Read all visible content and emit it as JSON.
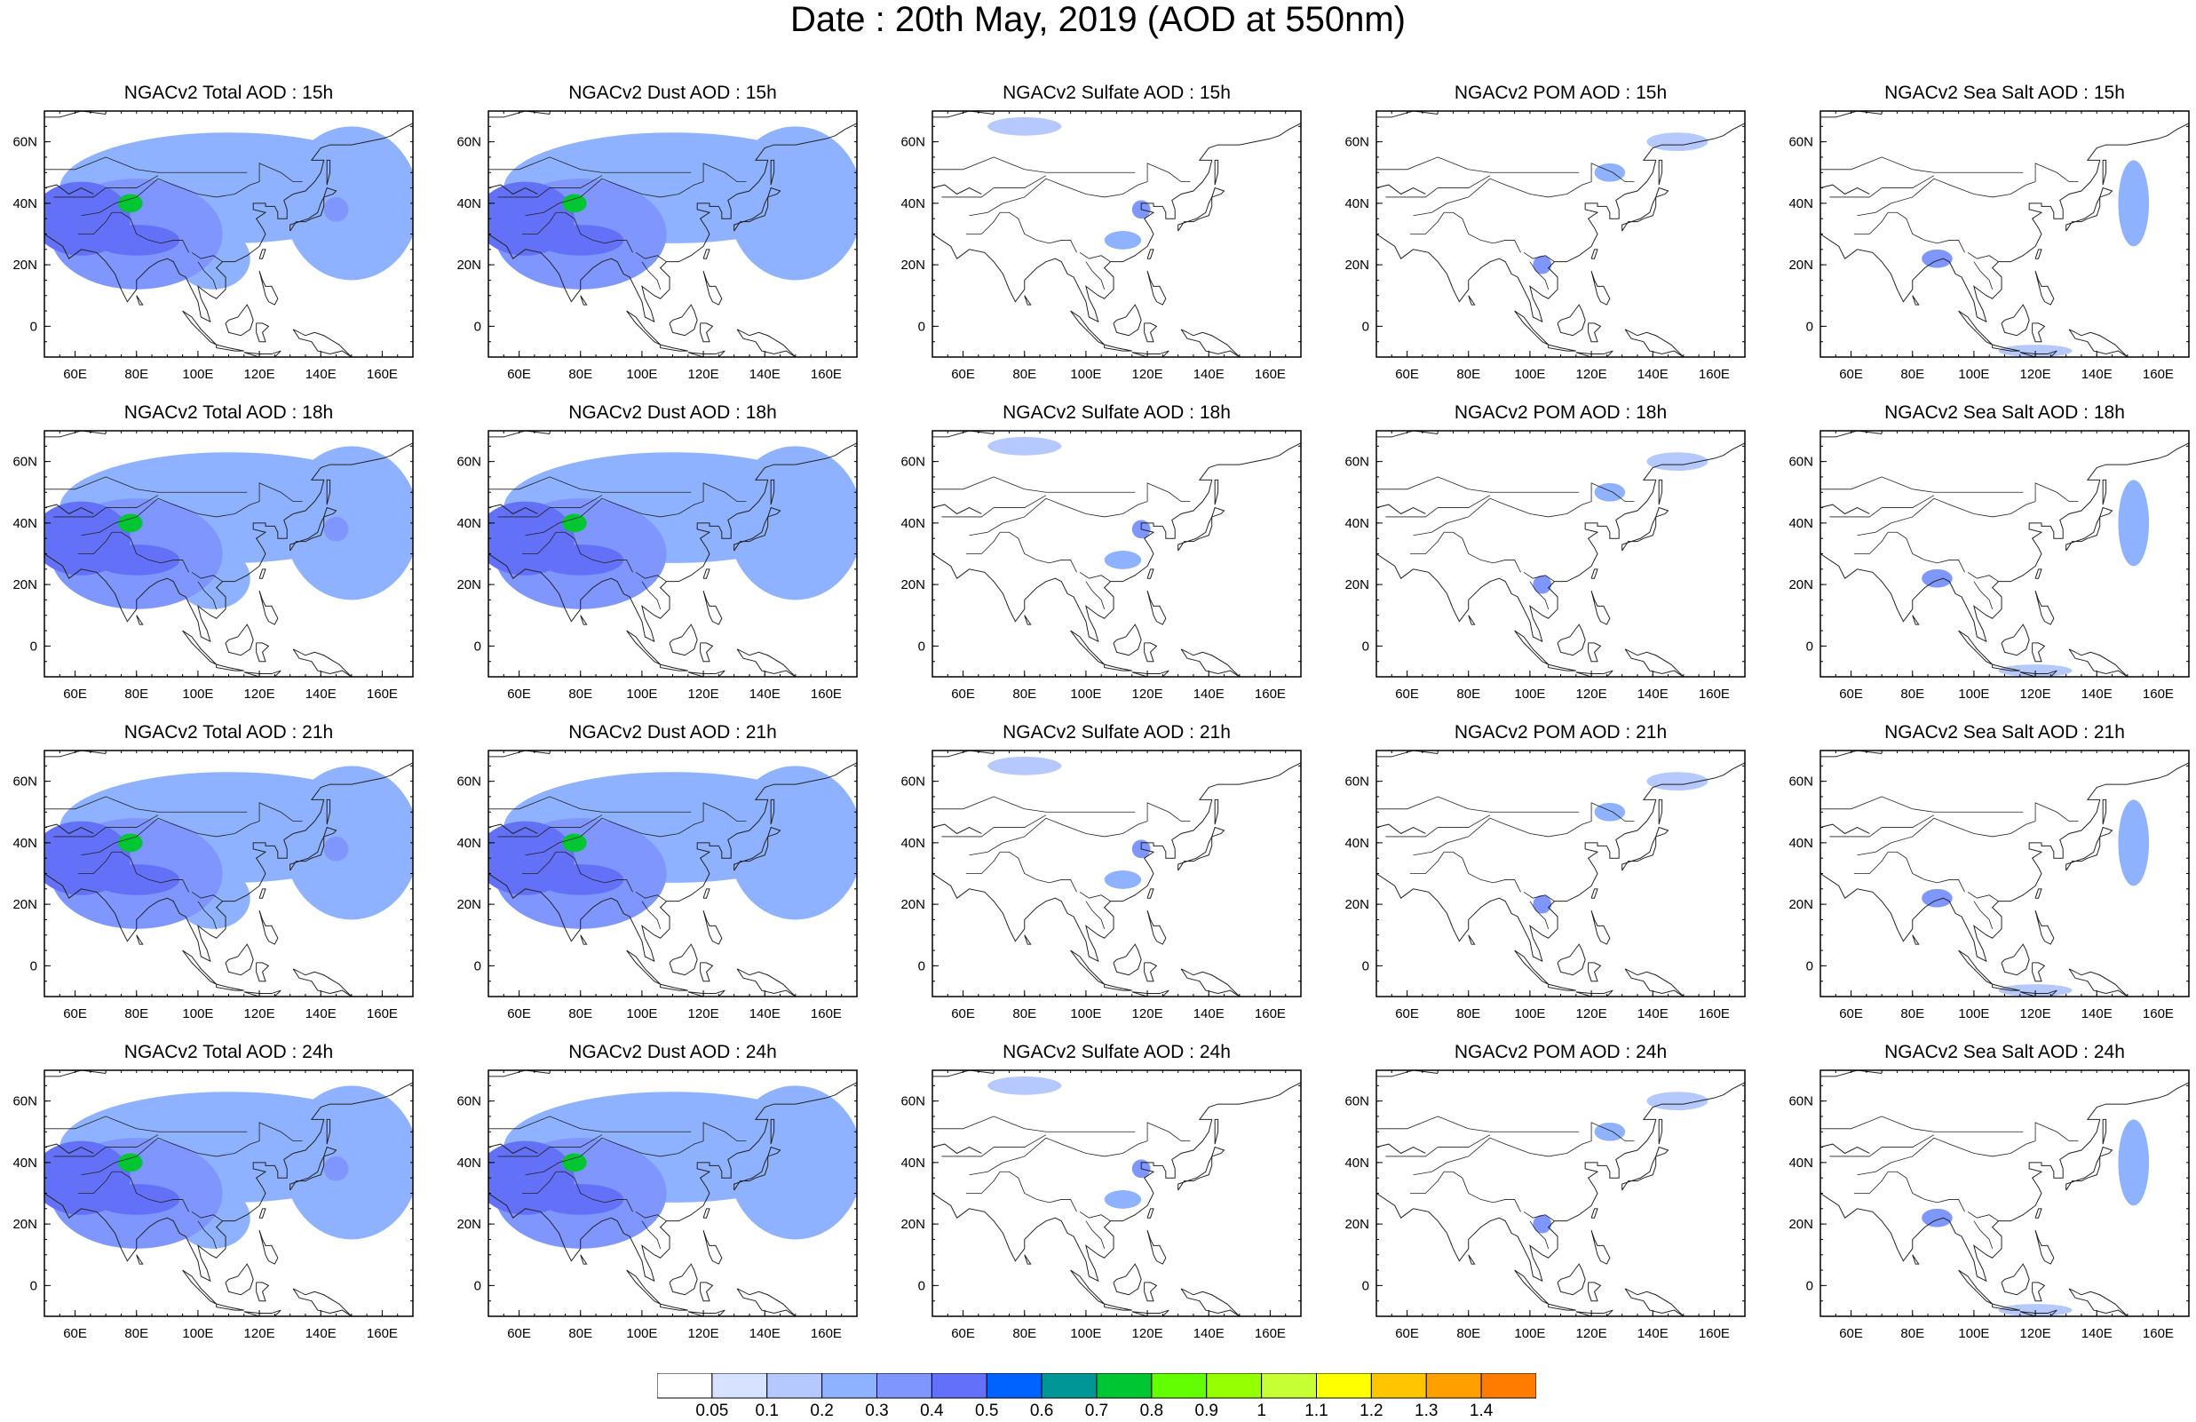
{
  "title": "Date : 20th May, 2019 (AOD at 550nm)",
  "map_axes": {
    "lon_ticks": [
      "60E",
      "80E",
      "100E",
      "120E",
      "140E",
      "160E"
    ],
    "lat_ticks": [
      "60N",
      "40N",
      "20N",
      "0"
    ]
  },
  "panels": [
    {
      "title": "NGACv2 Total AOD : 15h",
      "species": "total",
      "hour": "15h"
    },
    {
      "title": "NGACv2 Dust AOD : 15h",
      "species": "dust",
      "hour": "15h"
    },
    {
      "title": "NGACv2 Sulfate AOD : 15h",
      "species": "sulfate",
      "hour": "15h"
    },
    {
      "title": "NGACv2 POM AOD : 15h",
      "species": "pom",
      "hour": "15h"
    },
    {
      "title": "NGACv2 Sea Salt AOD : 15h",
      "species": "seasalt",
      "hour": "15h"
    },
    {
      "title": "NGACv2 Total AOD : 18h",
      "species": "total",
      "hour": "18h"
    },
    {
      "title": "NGACv2 Dust AOD : 18h",
      "species": "dust",
      "hour": "18h"
    },
    {
      "title": "NGACv2 Sulfate AOD : 18h",
      "species": "sulfate",
      "hour": "18h"
    },
    {
      "title": "NGACv2 POM AOD : 18h",
      "species": "pom",
      "hour": "18h"
    },
    {
      "title": "NGACv2 Sea Salt AOD : 18h",
      "species": "seasalt",
      "hour": "18h"
    },
    {
      "title": "NGACv2 Total AOD : 21h",
      "species": "total",
      "hour": "21h"
    },
    {
      "title": "NGACv2 Dust AOD : 21h",
      "species": "dust",
      "hour": "21h"
    },
    {
      "title": "NGACv2 Sulfate AOD : 21h",
      "species": "sulfate",
      "hour": "21h"
    },
    {
      "title": "NGACv2 POM AOD : 21h",
      "species": "pom",
      "hour": "21h"
    },
    {
      "title": "NGACv2 Sea Salt AOD : 21h",
      "species": "seasalt",
      "hour": "21h"
    },
    {
      "title": "NGACv2 Total AOD : 24h",
      "species": "total",
      "hour": "24h"
    },
    {
      "title": "NGACv2 Dust AOD : 24h",
      "species": "dust",
      "hour": "24h"
    },
    {
      "title": "NGACv2 Sulfate AOD : 24h",
      "species": "sulfate",
      "hour": "24h"
    },
    {
      "title": "NGACv2 POM AOD : 24h",
      "species": "pom",
      "hour": "24h"
    },
    {
      "title": "NGACv2 Sea Salt  AOD : 24h",
      "species": "seasalt",
      "hour": "24h"
    }
  ],
  "colorbar": {
    "labels": [
      "0.05",
      "0.1",
      "0.2",
      "0.3",
      "0.4",
      "0.5",
      "0.6",
      "0.7",
      "0.8",
      "0.9",
      "1",
      "1.1",
      "1.2",
      "1.3",
      "1.4"
    ],
    "colors": [
      "#ffffff",
      "#d6e2ff",
      "#b5c9ff",
      "#8eb2ff",
      "#7f96ff",
      "#6370f8",
      "#0063ff",
      "#009696",
      "#00c633",
      "#63ff00",
      "#96ff00",
      "#c6ff33",
      "#ffff00",
      "#ffc600",
      "#ffa000",
      "#ff7c00",
      "#ff1900"
    ]
  },
  "chart_data": {
    "type": "heatmap",
    "title": "Date : 20th May, 2019 (AOD at 550nm)",
    "x_axis": {
      "range_lon": [
        50,
        170
      ],
      "ticks": [
        "60E",
        "80E",
        "100E",
        "120E",
        "140E",
        "160E"
      ]
    },
    "y_axis": {
      "range_lat": [
        -10,
        70
      ],
      "ticks": [
        "60N",
        "40N",
        "20N",
        "0"
      ]
    },
    "rows_hours": [
      "15h",
      "18h",
      "21h",
      "24h"
    ],
    "columns_species": [
      "Total",
      "Dust",
      "Sulfate",
      "POM",
      "Sea Salt"
    ],
    "plumes": {
      "total": [
        {
          "lon": 62,
          "lat": 35,
          "rlon": 16,
          "rlat": 12,
          "aod": 0.45
        },
        {
          "lon": 78,
          "lat": 40,
          "rlon": 4,
          "rlat": 3,
          "aod": 0.75
        },
        {
          "lon": 80,
          "lat": 28,
          "rlon": 14,
          "rlat": 5,
          "aod": 0.45
        },
        {
          "lon": 80,
          "lat": 30,
          "rlon": 28,
          "rlat": 18,
          "aod": 0.3
        },
        {
          "lon": 110,
          "lat": 45,
          "rlon": 55,
          "rlat": 18,
          "aod": 0.2
        },
        {
          "lon": 150,
          "lat": 40,
          "rlon": 22,
          "rlat": 25,
          "aod": 0.2
        },
        {
          "lon": 105,
          "lat": 22,
          "rlon": 12,
          "rlat": 10,
          "aod": 0.25
        },
        {
          "lon": 145,
          "lat": 38,
          "rlon": 4,
          "rlat": 4,
          "aod": 0.35
        }
      ],
      "dust": [
        {
          "lon": 62,
          "lat": 35,
          "rlon": 16,
          "rlat": 12,
          "aod": 0.45
        },
        {
          "lon": 78,
          "lat": 40,
          "rlon": 4,
          "rlat": 3,
          "aod": 0.75
        },
        {
          "lon": 80,
          "lat": 28,
          "rlon": 14,
          "rlat": 5,
          "aod": 0.45
        },
        {
          "lon": 80,
          "lat": 30,
          "rlon": 28,
          "rlat": 18,
          "aod": 0.3
        },
        {
          "lon": 110,
          "lat": 45,
          "rlon": 55,
          "rlat": 18,
          "aod": 0.2
        },
        {
          "lon": 150,
          "lat": 40,
          "rlon": 22,
          "rlat": 25,
          "aod": 0.2
        }
      ],
      "sulfate": [
        {
          "lon": 112,
          "lat": 28,
          "rlon": 6,
          "rlat": 3,
          "aod": 0.2
        },
        {
          "lon": 118,
          "lat": 38,
          "rlon": 3,
          "rlat": 3,
          "aod": 0.3
        },
        {
          "lon": 80,
          "lat": 65,
          "rlon": 12,
          "rlat": 3,
          "aod": 0.1
        }
      ],
      "pom": [
        {
          "lon": 126,
          "lat": 50,
          "rlon": 5,
          "rlat": 3,
          "aod": 0.2
        },
        {
          "lon": 104,
          "lat": 20,
          "rlon": 3,
          "rlat": 3,
          "aod": 0.3
        },
        {
          "lon": 148,
          "lat": 60,
          "rlon": 10,
          "rlat": 3,
          "aod": 0.1
        }
      ],
      "seasalt": [
        {
          "lon": 152,
          "lat": 40,
          "rlon": 5,
          "rlat": 14,
          "aod": 0.2
        },
        {
          "lon": 88,
          "lat": 22,
          "rlon": 5,
          "rlat": 3,
          "aod": 0.3
        },
        {
          "lon": 120,
          "lat": -8,
          "rlon": 12,
          "rlat": 2,
          "aod": 0.1
        }
      ]
    },
    "colorbar_levels": [
      0.05,
      0.1,
      0.2,
      0.3,
      0.4,
      0.5,
      0.6,
      0.7,
      0.8,
      0.9,
      1,
      1.1,
      1.2,
      1.3,
      1.4
    ]
  }
}
